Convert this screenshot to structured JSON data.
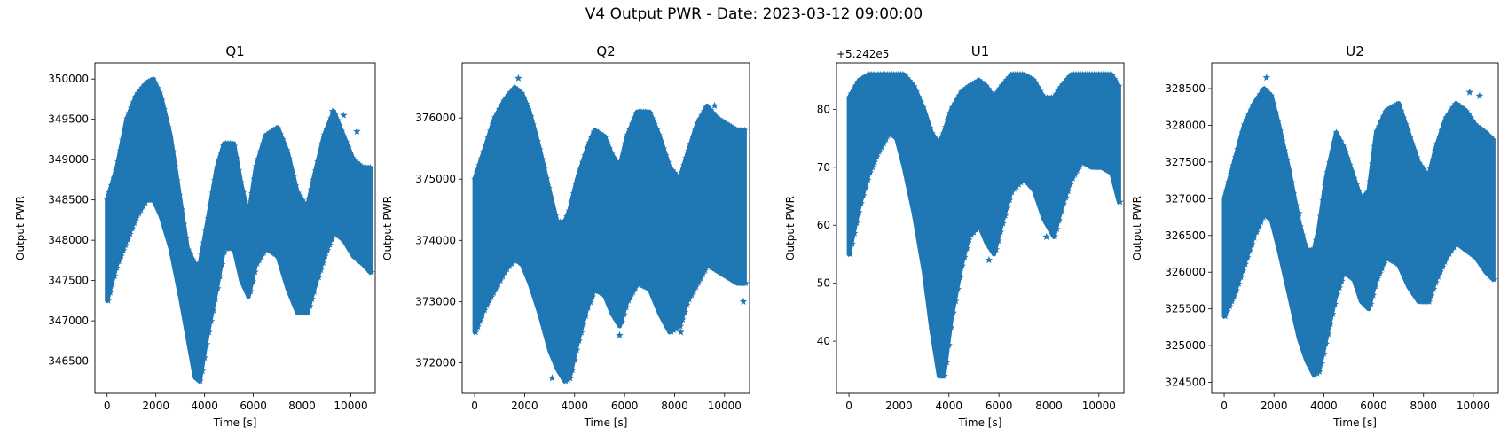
{
  "figure": {
    "title": "V4 Output PWR - Date: 2023-03-12 09:00:00",
    "marker_color": "#1f77b4",
    "marker": "star"
  },
  "chart_data": [
    {
      "type": "scatter",
      "title": "Q1",
      "xlabel": "Time [s]",
      "ylabel": "Output PWR",
      "xlim": [
        -500,
        11000
      ],
      "ylim": [
        346100,
        350200
      ],
      "xticks": [
        0,
        2000,
        4000,
        6000,
        8000,
        10000
      ],
      "xtick_labels": [
        "0",
        "2000",
        "4000",
        "6000",
        "8000",
        "10000"
      ],
      "yticks": [
        346500,
        347000,
        347500,
        348000,
        348500,
        349000,
        349500,
        350000
      ],
      "ytick_labels": [
        "346500",
        "347000",
        "347500",
        "348000",
        "348500",
        "349000",
        "349500",
        "350000"
      ],
      "offset_label": "",
      "band": {
        "x": [
          0,
          400,
          800,
          1200,
          1600,
          1900,
          2200,
          2600,
          3000,
          3300,
          3600,
          3800,
          4100,
          4500,
          4800,
          5200,
          5500,
          5800,
          6100,
          6500,
          7000,
          7400,
          7800,
          8200,
          8500,
          8900,
          9300,
          9700,
          10100,
          10500,
          10800
        ],
        "upper": [
          348500,
          348900,
          349500,
          349800,
          349950,
          350000,
          349800,
          349300,
          348500,
          347900,
          347700,
          347700,
          348200,
          348900,
          349200,
          349200,
          348700,
          348300,
          348900,
          349300,
          349400,
          349100,
          348600,
          348400,
          348800,
          349300,
          349600,
          349300,
          349000,
          348900,
          348900
        ],
        "lower": [
          347250,
          347700,
          348000,
          348300,
          348500,
          348500,
          348300,
          347900,
          347300,
          346800,
          346300,
          346250,
          346800,
          347400,
          347900,
          347900,
          347500,
          347300,
          347700,
          347900,
          347800,
          347400,
          347100,
          347100,
          347400,
          347800,
          348100,
          348000,
          347800,
          347700,
          347600
        ]
      },
      "outliers": [
        [
          9250,
          349600
        ],
        [
          9700,
          349550
        ],
        [
          10250,
          349350
        ]
      ]
    },
    {
      "type": "scatter",
      "title": "Q2",
      "xlabel": "Time [s]",
      "ylabel": "Output PWR",
      "xlim": [
        -500,
        11000
      ],
      "ylim": [
        371500,
        376900
      ],
      "xticks": [
        0,
        2000,
        4000,
        6000,
        8000,
        10000
      ],
      "xtick_labels": [
        "0",
        "2000",
        "4000",
        "6000",
        "8000",
        "10000"
      ],
      "yticks": [
        372000,
        373000,
        374000,
        375000,
        376000
      ],
      "ytick_labels": [
        "372000",
        "373000",
        "374000",
        "375000",
        "376000"
      ],
      "offset_label": "",
      "band": {
        "x": [
          0,
          400,
          800,
          1200,
          1600,
          1900,
          2200,
          2600,
          3000,
          3300,
          3600,
          3800,
          4100,
          4500,
          4800,
          5200,
          5500,
          5800,
          6100,
          6500,
          7000,
          7400,
          7800,
          8200,
          8500,
          8900,
          9300,
          9700,
          10100,
          10500,
          10800
        ],
        "upper": [
          375000,
          375500,
          376000,
          376300,
          376500,
          376400,
          376100,
          375500,
          374800,
          374300,
          374300,
          374500,
          375000,
          375500,
          375800,
          375700,
          375400,
          375200,
          375700,
          376100,
          376100,
          375700,
          375200,
          375000,
          375400,
          375900,
          376200,
          376000,
          375900,
          375800,
          375800
        ],
        "lower": [
          372500,
          372900,
          373200,
          373500,
          373700,
          373600,
          373300,
          372800,
          372200,
          371900,
          371700,
          371750,
          372300,
          372900,
          373200,
          373100,
          372800,
          372600,
          373000,
          373300,
          373200,
          372800,
          372500,
          372600,
          373000,
          373300,
          373600,
          373500,
          373400,
          373300,
          373300
        ]
      },
      "outliers": [
        [
          1750,
          376650
        ],
        [
          3100,
          371750
        ],
        [
          5800,
          372450
        ],
        [
          7800,
          372650
        ],
        [
          8250,
          372500
        ],
        [
          9600,
          376200
        ],
        [
          10750,
          373000
        ]
      ]
    },
    {
      "type": "scatter",
      "title": "U1",
      "xlabel": "Time [s]",
      "ylabel": "Output PWR",
      "xlim": [
        -500,
        11000
      ],
      "ylim": [
        31,
        88
      ],
      "xticks": [
        0,
        2000,
        4000,
        6000,
        8000,
        10000
      ],
      "xtick_labels": [
        "0",
        "2000",
        "4000",
        "6000",
        "8000",
        "10000"
      ],
      "yticks": [
        40,
        50,
        60,
        70,
        80
      ],
      "ytick_labels": [
        "40",
        "50",
        "60",
        "70",
        "80"
      ],
      "offset_label": "+5.242e5",
      "band": {
        "x": [
          0,
          400,
          800,
          1200,
          1600,
          1900,
          2200,
          2600,
          3000,
          3300,
          3600,
          3800,
          4100,
          4500,
          4800,
          5200,
          5500,
          5800,
          6100,
          6500,
          7000,
          7400,
          7800,
          8200,
          8500,
          8900,
          9300,
          9700,
          10100,
          10500,
          10800
        ],
        "upper": [
          82,
          85,
          86,
          86,
          86,
          86,
          86,
          84,
          80,
          76,
          74,
          76,
          80,
          83,
          84,
          85,
          84,
          82,
          84,
          86,
          86,
          85,
          82,
          82,
          84,
          86,
          86,
          86,
          86,
          86,
          84
        ],
        "lower": [
          55,
          63,
          69,
          73,
          76,
          75,
          70,
          62,
          52,
          42,
          34,
          34,
          44,
          53,
          58,
          60,
          57,
          55,
          60,
          66,
          68,
          66,
          61,
          58,
          63,
          68,
          71,
          70,
          70,
          69,
          64
        ]
      },
      "outliers": [
        [
          5600,
          54
        ],
        [
          7900,
          58
        ]
      ]
    },
    {
      "type": "scatter",
      "title": "U2",
      "xlabel": "Time [s]",
      "ylabel": "Output PWR",
      "xlim": [
        -500,
        11000
      ],
      "ylim": [
        324350,
        328850
      ],
      "xticks": [
        0,
        2000,
        4000,
        6000,
        8000,
        10000
      ],
      "xtick_labels": [
        "0",
        "2000",
        "4000",
        "6000",
        "8000",
        "10000"
      ],
      "yticks": [
        324500,
        325000,
        325500,
        326000,
        326500,
        327000,
        327500,
        328000,
        328500
      ],
      "ytick_labels": [
        "324500",
        "325000",
        "325500",
        "326000",
        "326500",
        "327000",
        "327500",
        "328000",
        "328500"
      ],
      "offset_label": "",
      "band": {
        "x": [
          0,
          400,
          800,
          1200,
          1600,
          1900,
          2200,
          2600,
          3000,
          3300,
          3600,
          3800,
          4100,
          4500,
          4800,
          5200,
          5500,
          5800,
          6100,
          6500,
          7000,
          7400,
          7800,
          8200,
          8500,
          8900,
          9300,
          9700,
          10100,
          10500,
          10800
        ],
        "upper": [
          327000,
          327500,
          328000,
          328300,
          328500,
          328400,
          328000,
          327400,
          326700,
          326300,
          326300,
          326600,
          327300,
          327900,
          327700,
          327300,
          327000,
          327100,
          327900,
          328200,
          328300,
          327900,
          327500,
          327300,
          327700,
          328100,
          328300,
          328200,
          328000,
          327900,
          327800
        ],
        "lower": [
          325400,
          325700,
          326100,
          326500,
          326800,
          326700,
          326300,
          325700,
          325100,
          324800,
          324600,
          324650,
          325100,
          325700,
          326000,
          325900,
          325600,
          325500,
          325900,
          326200,
          326100,
          325800,
          325600,
          325600,
          325900,
          326200,
          326400,
          326300,
          326200,
          326000,
          325900
        ]
      },
      "outliers": [
        [
          1700,
          328650
        ],
        [
          3000,
          326800
        ],
        [
          9850,
          328450
        ],
        [
          10250,
          328400
        ],
        [
          10650,
          325950
        ]
      ]
    }
  ]
}
